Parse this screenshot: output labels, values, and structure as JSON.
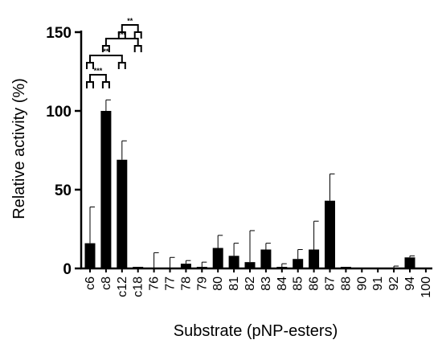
{
  "chart_data": {
    "type": "bar",
    "title": "",
    "xlabel": "Substrate (pNP-esters)",
    "ylabel": "Relative activity (%)",
    "ylim": [
      0,
      150
    ],
    "yticks": [
      0,
      50,
      100,
      150
    ],
    "grid": false,
    "legend": "none",
    "bar_color": "#000000",
    "categories": [
      "c6",
      "c8",
      "c12",
      "c18",
      "76",
      "77",
      "78",
      "79",
      "80",
      "81",
      "82",
      "83",
      "84",
      "85",
      "86",
      "87",
      "88",
      "90",
      "91",
      "92",
      "94",
      "100"
    ],
    "values": [
      16,
      100,
      69,
      1,
      0,
      0,
      3,
      1,
      13,
      8,
      4,
      12,
      1,
      6,
      12,
      43,
      1,
      0.5,
      0.5,
      0.5,
      7,
      0.5
    ],
    "errors": [
      23,
      7,
      12,
      0,
      10,
      7,
      2,
      3,
      8,
      8,
      20,
      4,
      2,
      6,
      18,
      17,
      0,
      0,
      0,
      1,
      1,
      0
    ],
    "significance": [
      {
        "from": "c6",
        "to": "c8",
        "label": "***"
      },
      {
        "from": "c6",
        "to": "c12",
        "label": "**"
      },
      {
        "from": "c8",
        "to": "c18",
        "label": "***"
      },
      {
        "from": "c12",
        "to": "c18",
        "label": "**"
      }
    ]
  }
}
